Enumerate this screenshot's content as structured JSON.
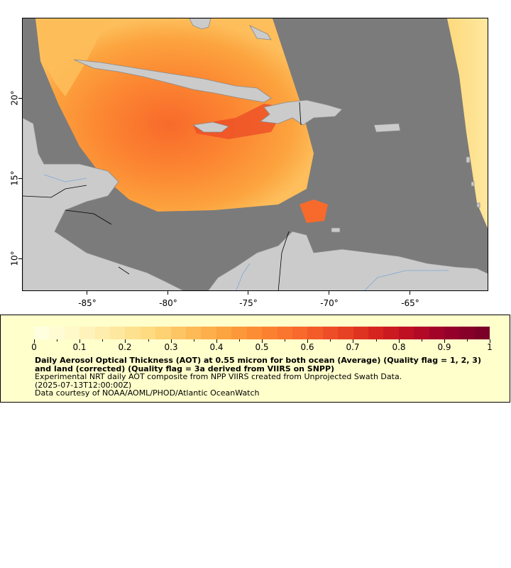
{
  "map": {
    "longitude_ticks": [
      "-85°",
      "-80°",
      "-75°",
      "-70°",
      "-65°"
    ],
    "latitude_ticks": [
      "10°",
      "15°",
      "20°"
    ],
    "colors": {
      "missing_data": "#7b7b7b",
      "land": "#cbcbcb",
      "coastline": "#8a8a8a",
      "rivers": "#7fa7d6",
      "borders": "#000000"
    }
  },
  "legend": {
    "background": "#ffffcc",
    "colorbar_labels": [
      "0",
      "0.1",
      "0.2",
      "0.3",
      "0.4",
      "0.5",
      "0.6",
      "0.7",
      "0.8",
      "0.9",
      "1"
    ],
    "colorbar_range": [
      0,
      1
    ],
    "colorbar_colors": [
      "#ffffe0",
      "#fff7c4",
      "#fee8a0",
      "#fed97c",
      "#fdbe5b",
      "#fca33e",
      "#fc8732",
      "#f86a2b",
      "#ec4a26",
      "#d9281f",
      "#bd0e23",
      "#99002b",
      "#7a0028"
    ],
    "title": "Daily Aerosol Optical Thickness (AOT) at 0.55 micron for both ocean (Average) (Quality flag = 1, 2, 3) and land (corrected) (Quality flag = 3a derived from VIIRS on SNPP)",
    "description": "Experimental NRT daily AOT composite from NPP VIIRS created from Unprojected Swath Data.",
    "time": "(2025-07-13T12:00:00Z)",
    "credit": "Data courtesy of NOAA/AOML/PHOD/Atlantic OceanWatch"
  }
}
